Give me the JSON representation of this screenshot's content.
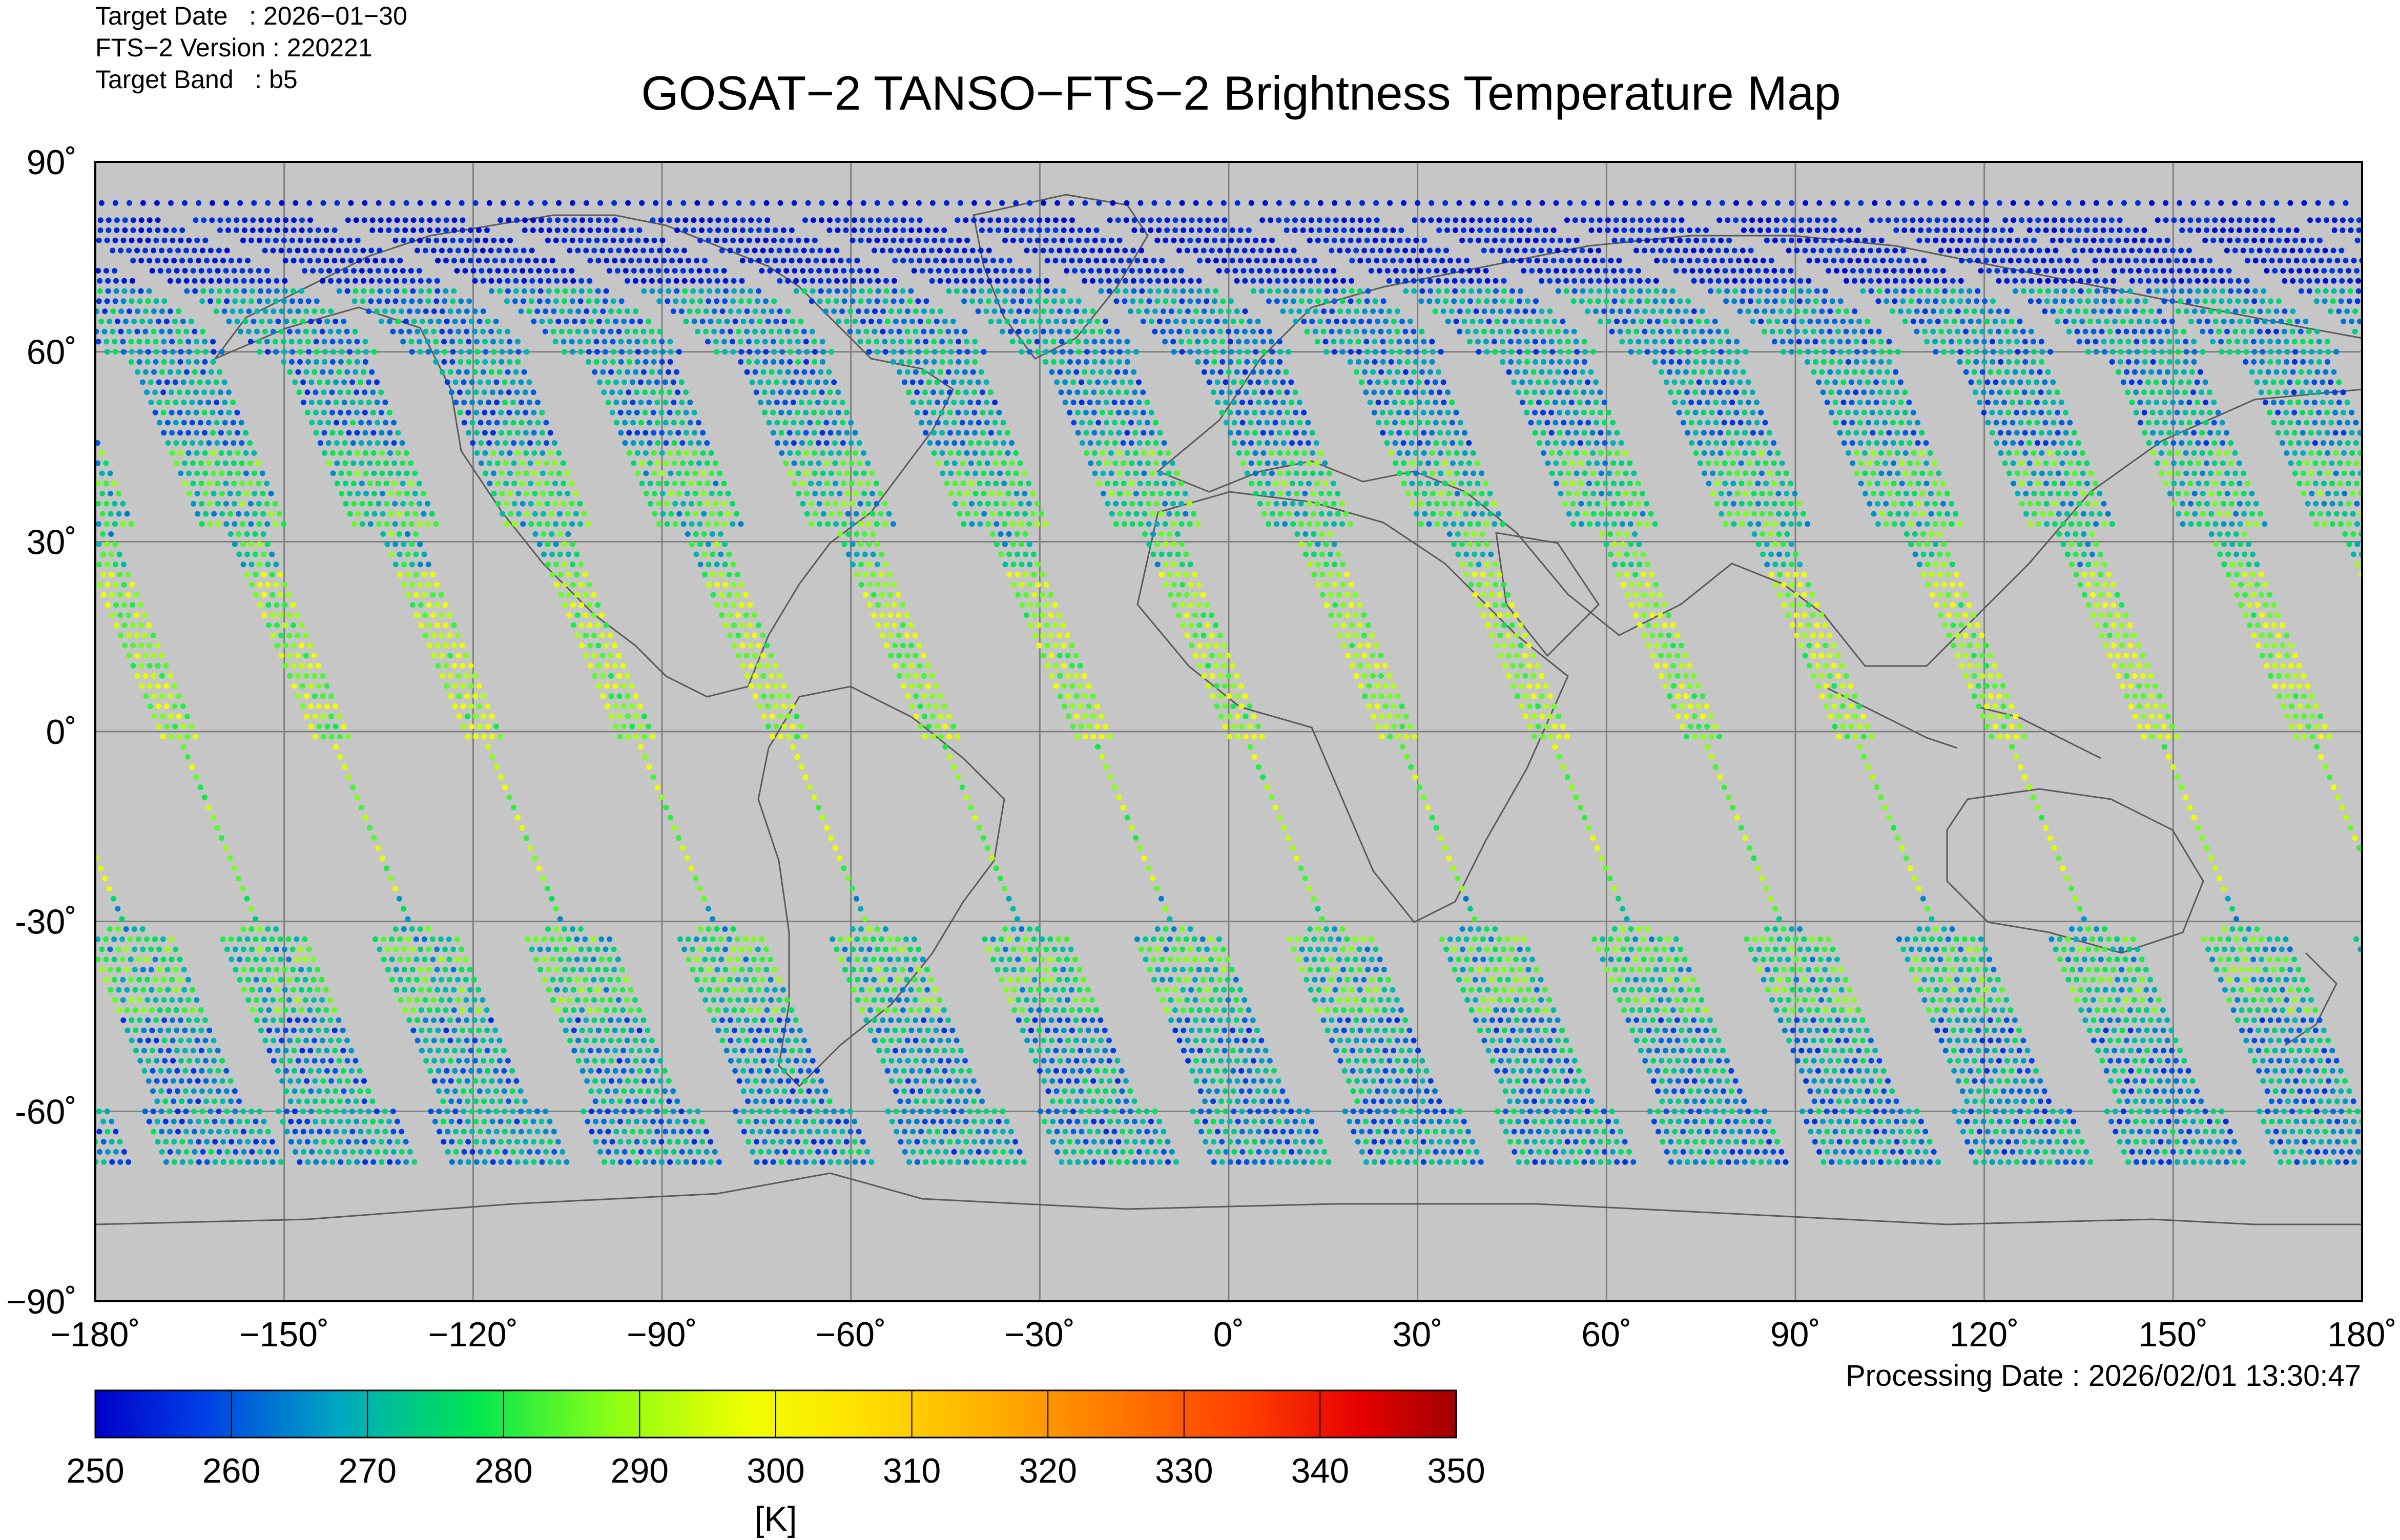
{
  "header": {
    "target_date": "Target Date   : 2026−01−30",
    "fts_version": "FTS−2 Version : 220221",
    "target_band": "Target Band   : b5"
  },
  "title": "GOSAT−2 TANSO−FTS−2 Brightness Temperature Map",
  "processing_date": "Processing Date : 2026/02/01 13:30:47",
  "colors": {
    "map_background": "#c6c6c6",
    "grid": "#808080",
    "coastline": "#5a5a5a",
    "colormap": [
      "#0000c8",
      "#0050e6",
      "#00b4b4",
      "#00e650",
      "#78ff1e",
      "#e6ff00",
      "#ffff00",
      "#ffc800",
      "#ff8c00",
      "#ff4b00",
      "#e60000",
      "#a00000"
    ]
  },
  "chart_data": {
    "type": "scatter",
    "projection": "equirectangular",
    "xlim": [
      -180,
      180
    ],
    "ylim": [
      -90,
      90
    ],
    "xticks": [
      "−180˚",
      "−150˚",
      "−120˚",
      "−90˚",
      "−60˚",
      "−30˚",
      "0˚",
      "30˚",
      "60˚",
      "90˚",
      "120˚",
      "150˚",
      "180˚"
    ],
    "yticks": [
      "90˚",
      "60˚",
      "30˚",
      "0˚",
      "-30˚",
      "-60˚",
      "−90˚"
    ],
    "colorbar": {
      "min": 250,
      "max": 350,
      "ticks": [
        "250",
        "260",
        "270",
        "280",
        "290",
        "300",
        "310",
        "320",
        "330",
        "340",
        "350"
      ],
      "unit": "[K]"
    },
    "orbit_tracks": {
      "count": 15,
      "equator_crossing_lon_start": -167,
      "lon_spacing_deg": 24.2,
      "description_values_K": "polar ≈ 250–262 K, mid-latitudes ≈ 262–285 K, tropics ≈ 285–300 K"
    }
  }
}
